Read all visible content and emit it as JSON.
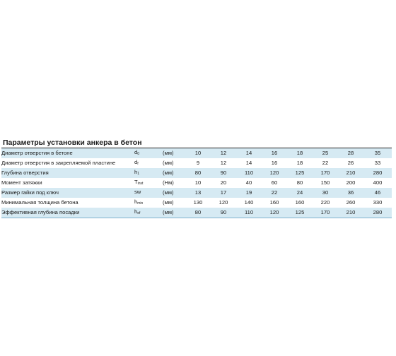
{
  "title": "Параметры установки анкера в бетон",
  "rows": [
    {
      "name": "Диаметр отверстия в бетоне",
      "sym": "d",
      "sub": "0",
      "unit": "(мм)",
      "values": [
        "10",
        "12",
        "14",
        "16",
        "18",
        "25",
        "28",
        "35"
      ]
    },
    {
      "name": "Диаметр отверстия в закрепляемой пластине",
      "sym": "d",
      "sub": "f",
      "unit": "(мм)",
      "values": [
        "9",
        "12",
        "14",
        "16",
        "18",
        "22",
        "26",
        "33"
      ]
    },
    {
      "name": "Глубина отверстия",
      "sym": "h",
      "sub": "1",
      "unit": "(мм)",
      "values": [
        "80",
        "90",
        "110",
        "120",
        "125",
        "170",
        "210",
        "280"
      ]
    },
    {
      "name": "Момент затяжки",
      "sym": "T",
      "sub": "inst",
      "unit": "(Нм)",
      "values": [
        "10",
        "20",
        "40",
        "60",
        "80",
        "150",
        "200",
        "400"
      ]
    },
    {
      "name": "Размер гайки под ключ",
      "sym": "sw",
      "sub": "",
      "unit": "(мм)",
      "values": [
        "13",
        "17",
        "19",
        "22",
        "24",
        "30",
        "36",
        "46"
      ]
    },
    {
      "name": "Минимальная толщина бетона",
      "sym": "h",
      "sub": "min",
      "unit": "(мм)",
      "values": [
        "130",
        "120",
        "140",
        "160",
        "160",
        "220",
        "260",
        "330"
      ]
    },
    {
      "name": "Эффективная глубина посадки",
      "sym": "h",
      "sub": "ef",
      "unit": "(мм)",
      "values": [
        "80",
        "90",
        "110",
        "120",
        "125",
        "170",
        "210",
        "280"
      ]
    }
  ]
}
